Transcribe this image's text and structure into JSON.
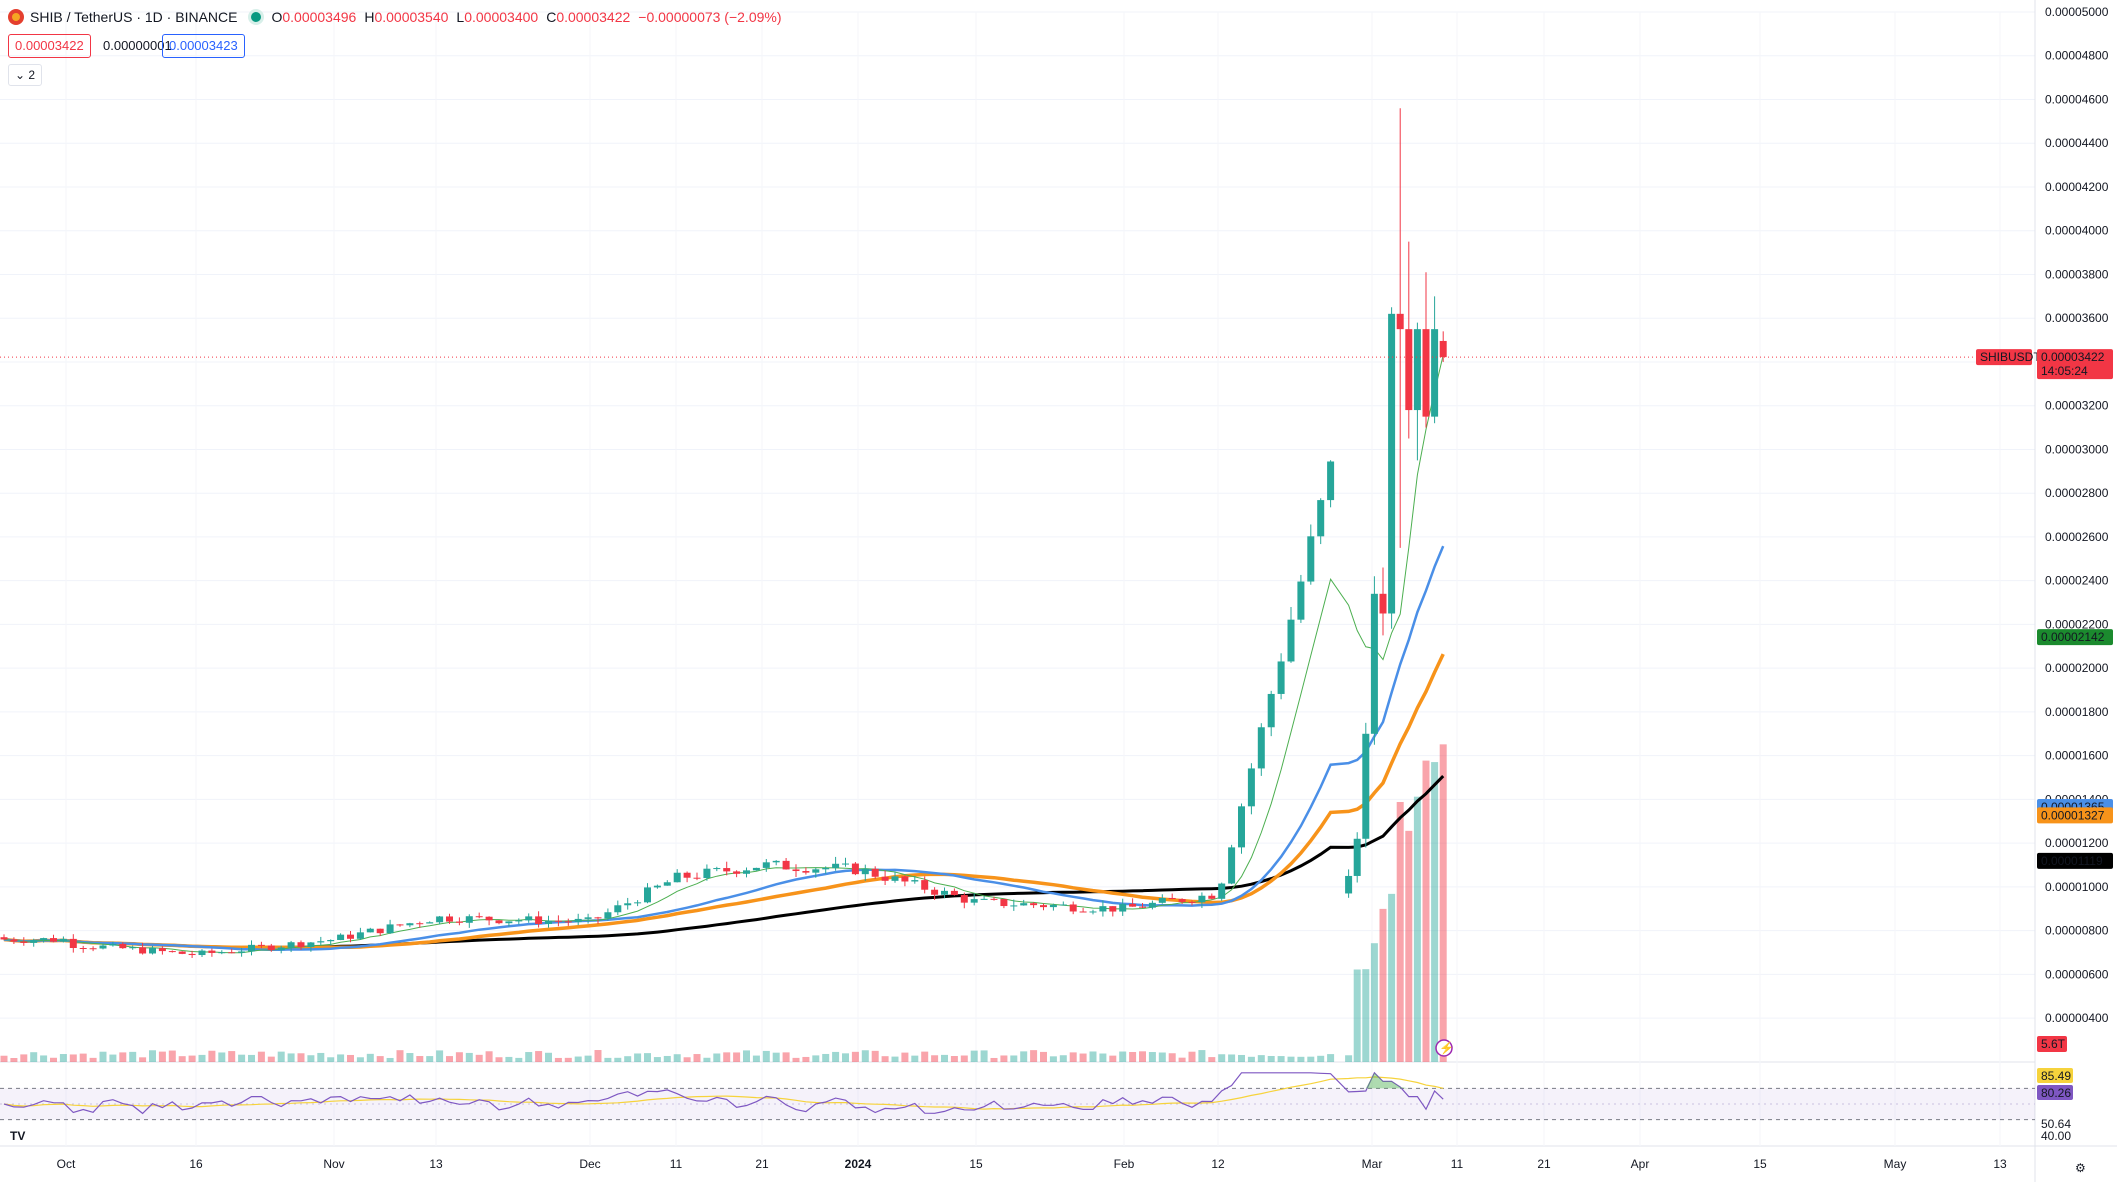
{
  "header": {
    "symbol": "SHIB / TetherUS · 1D · BINANCE",
    "ohlc": [
      {
        "k": "O",
        "v": "0.00003496"
      },
      {
        "k": "H",
        "v": "0.00003540"
      },
      {
        "k": "L",
        "v": "0.00003400"
      },
      {
        "k": "C",
        "v": "0.00003422"
      }
    ],
    "change": "−0.00000073 (−2.09%)",
    "bid": "0.00003422",
    "spread": "0.00000001",
    "ask": "0.00003423",
    "indicators_collapsed": "⌄ 2"
  },
  "colors": {
    "up": "#26a69a",
    "down": "#f23645",
    "ma_fast": "#4caf50",
    "ma_blue": "#4a8fe7",
    "ma_orange": "#f7931a",
    "ma_black": "#000000",
    "rsi": "#7e57c2",
    "rsi_ma": "#f6d33c"
  },
  "price_axis": {
    "ylim": [
      3e-06,
      5e-05
    ],
    "labels": [
      "0.00005000",
      "0.00004800",
      "0.00004600",
      "0.00004400",
      "0.00004200",
      "0.00004000",
      "0.00003800",
      "0.00003600",
      "0.00003400",
      "0.00003200",
      "0.00003000",
      "0.00002800",
      "0.00002600",
      "0.00002400",
      "0.00002200",
      "0.00002000",
      "0.00001800",
      "0.00001600",
      "0.00001400",
      "0.00001200",
      "0.00001000",
      "0.00000800",
      "0.00000600",
      "0.00000400"
    ],
    "ticks": [
      5e-05,
      4.8e-05,
      4.6e-05,
      4.4e-05,
      4.2e-05,
      4e-05,
      3.8e-05,
      3.6e-05,
      3.4e-05,
      3.2e-05,
      3e-05,
      2.8e-05,
      2.6e-05,
      2.4e-05,
      2.2e-05,
      2e-05,
      1.8e-05,
      1.6e-05,
      1.4e-05,
      1.2e-05,
      1e-05,
      8e-06,
      6e-06,
      4e-06
    ]
  },
  "price_tags": {
    "symbol_label": "SHIBUSDT",
    "current": {
      "value": 3.422e-05,
      "text": "0.00003422",
      "countdown": "14:05:24"
    },
    "ma_fast": {
      "value": 2.142e-05,
      "text": "0.00002142"
    },
    "ma_blue": {
      "value": 1.365e-05,
      "text": "0.00001365"
    },
    "ma_orange": {
      "value": 1.327e-05,
      "text": "0.00001327"
    },
    "ma_black": {
      "value": 1.119e-05,
      "text": "0.00001119"
    },
    "volume": "5.6T"
  },
  "rsi": {
    "value": "85.49",
    "ma_value": "80.26",
    "labels": [
      "50.64",
      "40.00"
    ]
  },
  "time_axis": {
    "labels": [
      "Oct",
      "16",
      "Nov",
      "13",
      "Dec",
      "11",
      "21",
      "2024",
      "15",
      "Feb",
      "12",
      "Mar",
      "11",
      "21",
      "Apr",
      "15",
      "May",
      "13"
    ],
    "bold": [
      "2024"
    ]
  },
  "chart_data": {
    "type": "candlestick",
    "interval": "1D",
    "dates": [
      "Oct",
      "16",
      "Nov",
      "13",
      "Dec",
      "11",
      "21",
      "2024",
      "15",
      "Feb",
      "12",
      "Mar",
      "11",
      "21",
      "Apr",
      "15",
      "May",
      "13"
    ],
    "ylim": [
      3e-06,
      5e-05
    ],
    "key_points": [
      {
        "label": "Oct",
        "close": 7.4e-06
      },
      {
        "label": "16",
        "close": 6.9e-06
      },
      {
        "label": "Nov",
        "close": 7.6e-06
      },
      {
        "label": "13",
        "close": 8.6e-06
      },
      {
        "label": "Dec",
        "close": 8.4e-06
      },
      {
        "label": "11",
        "close": 1.04e-05
      },
      {
        "label": "21",
        "close": 1.1e-05
      },
      {
        "label": "2024",
        "close": 1.08e-05
      },
      {
        "label": "15",
        "close": 9.3e-06
      },
      {
        "label": "Feb",
        "close": 9e-06
      },
      {
        "label": "12",
        "close": 9.7e-06
      },
      {
        "label": "Mar",
        "close": 3.62e-05
      },
      {
        "label": "11",
        "close": 3.42e-05
      }
    ],
    "last_candle": {
      "open": 3.496e-05,
      "high": 3.54e-05,
      "low": 3.4e-05,
      "close": 3.422e-05
    },
    "peak_high": 4.56e-05
  }
}
